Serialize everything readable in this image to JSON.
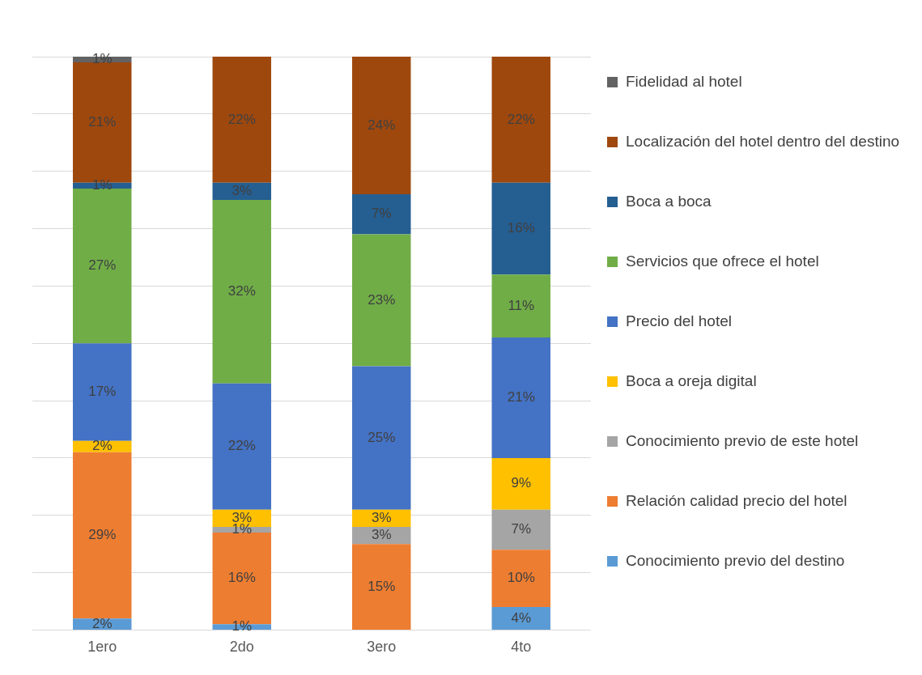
{
  "chart_data": {
    "type": "bar",
    "stacked": true,
    "categories": [
      "1ero",
      "2do",
      "3ero",
      "4to"
    ],
    "ylim": [
      0,
      100
    ],
    "tick_labels": "x",
    "grid": "y",
    "legend": "right",
    "series": [
      {
        "name": "Conocimiento previo del destino",
        "color": "#5b9bd5",
        "values": [
          2,
          1,
          null,
          4
        ],
        "value_labels": [
          "2%",
          "1%",
          null,
          "4%"
        ]
      },
      {
        "name": "Relación calidad precio del hotel",
        "color": "#ed7d31",
        "values": [
          29,
          16,
          15,
          10
        ],
        "value_labels": [
          "29%",
          "16%",
          "15%",
          "10%"
        ]
      },
      {
        "name": "Conocimiento previo de este hotel",
        "color": "#a5a5a5",
        "values": [
          null,
          1,
          3,
          7
        ],
        "value_labels": [
          null,
          "1%",
          "3%",
          "7%"
        ]
      },
      {
        "name": "Boca a oreja digital",
        "color": "#ffc000",
        "values": [
          2,
          3,
          3,
          9
        ],
        "value_labels": [
          "2%",
          "3%",
          "3%",
          "9%"
        ]
      },
      {
        "name": "Precio del hotel",
        "color": "#4472c4",
        "values": [
          17,
          22,
          25,
          21
        ],
        "value_labels": [
          "17%",
          "22%",
          "25%",
          "21%"
        ]
      },
      {
        "name": "Servicios que ofrece el hotel",
        "color": "#70ad47",
        "values": [
          27,
          32,
          23,
          11
        ],
        "value_labels": [
          "27%",
          "32%",
          "23%",
          "11%"
        ]
      },
      {
        "name": "Boca a boca",
        "color": "#255e91",
        "values": [
          1,
          3,
          7,
          16
        ],
        "value_labels": [
          "1%",
          "3%",
          "7%",
          "16%"
        ]
      },
      {
        "name": "Localización del hotel dentro del destino",
        "color": "#9e480e",
        "values": [
          21,
          22,
          24,
          22
        ],
        "value_labels": [
          "21%",
          "22%",
          "24%",
          "22%"
        ]
      },
      {
        "name": "Fidelidad al hotel",
        "color": "#636363",
        "values": [
          1,
          null,
          null,
          null
        ],
        "value_labels": [
          "1%",
          null,
          null,
          null
        ]
      }
    ]
  }
}
